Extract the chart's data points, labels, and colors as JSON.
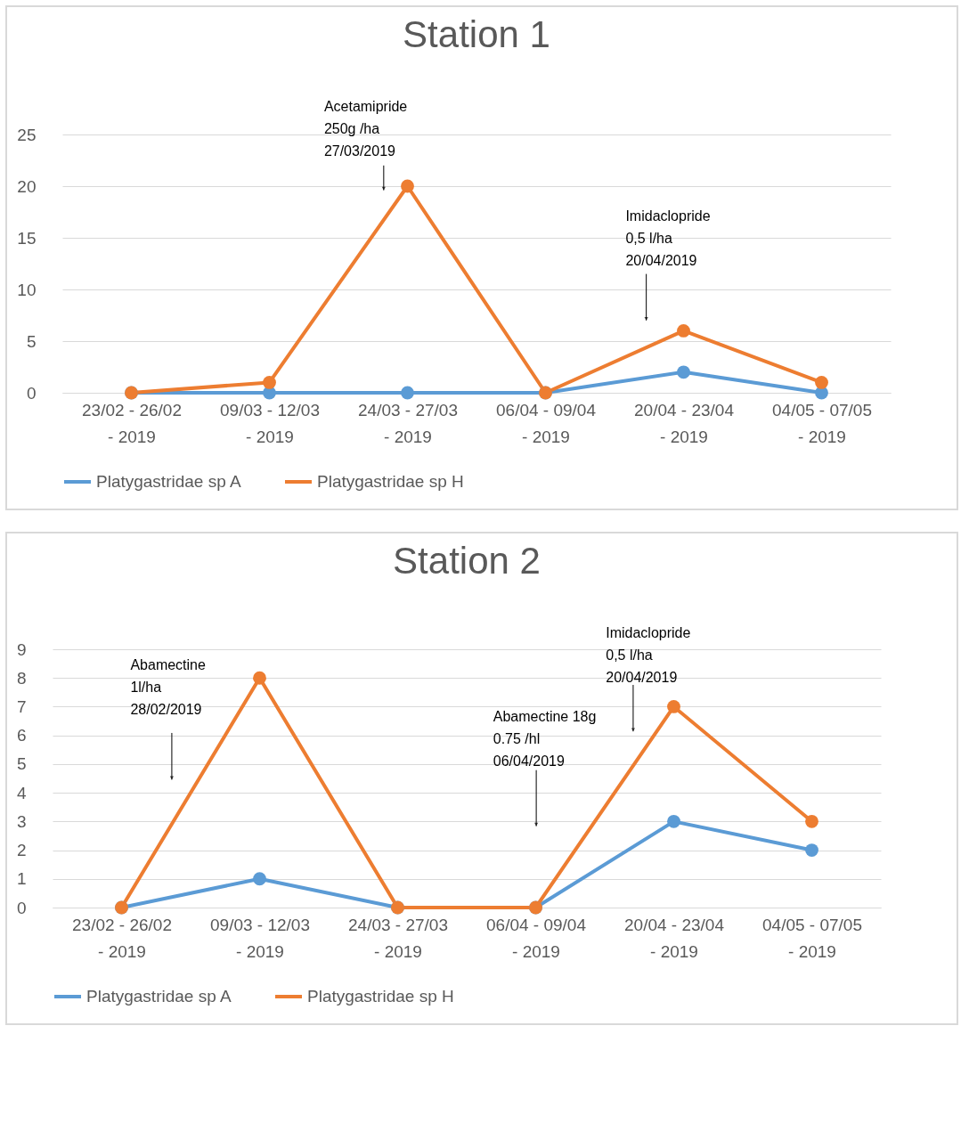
{
  "chart_data": [
    {
      "type": "line",
      "title": "Station 1",
      "categories": [
        "23/02 - 26/02\n- 2019",
        "09/03 - 12/03\n- 2019",
        "24/03 - 27/03\n- 2019",
        "06/04 - 09/04\n- 2019",
        "20/04 - 23/04\n- 2019",
        "04/05 - 07/05\n- 2019"
      ],
      "series": [
        {
          "name": "Platygastridae sp A",
          "color": "#5b9bd5",
          "values": [
            0,
            0,
            0,
            0,
            2,
            0
          ]
        },
        {
          "name": "Platygastridae sp H",
          "color": "#ed7d31",
          "values": [
            0,
            1,
            20,
            0,
            6,
            1
          ]
        }
      ],
      "ylim": [
        0,
        25
      ],
      "yticks": [
        0,
        5,
        10,
        15,
        20,
        25
      ],
      "grid": "y",
      "legend": "bottom",
      "marker": "circle",
      "line_style": "solid",
      "annotations": [
        "Acetamipride\n250g /ha\n27/03/2019",
        "Imidaclopride\n0,5 l/ha\n20/04/2019"
      ]
    },
    {
      "type": "line",
      "title": "Station 2",
      "categories": [
        "23/02 - 26/02\n- 2019",
        "09/03 - 12/03\n- 2019",
        "24/03 - 27/03\n- 2019",
        "06/04 - 09/04\n- 2019",
        "20/04 - 23/04\n- 2019",
        "04/05 - 07/05\n- 2019"
      ],
      "series": [
        {
          "name": "Platygastridae sp A",
          "color": "#5b9bd5",
          "values": [
            0,
            1,
            0,
            0,
            3,
            2
          ]
        },
        {
          "name": "Platygastridae sp H",
          "color": "#ed7d31",
          "values": [
            0,
            8,
            0,
            0,
            7,
            3
          ]
        }
      ],
      "ylim": [
        0,
        9
      ],
      "yticks": [
        0,
        1,
        2,
        3,
        4,
        5,
        6,
        7,
        8,
        9
      ],
      "grid": "y",
      "legend": "bottom",
      "marker": "circle",
      "line_style": "solid",
      "annotations": [
        "Abamectine\n1l/ha\n28/02/2019",
        "Abamectine 18g\n0.75 /hl\n06/04/2019",
        "Imidaclopride\n0,5 l/ha\n20/04/2019"
      ]
    }
  ]
}
